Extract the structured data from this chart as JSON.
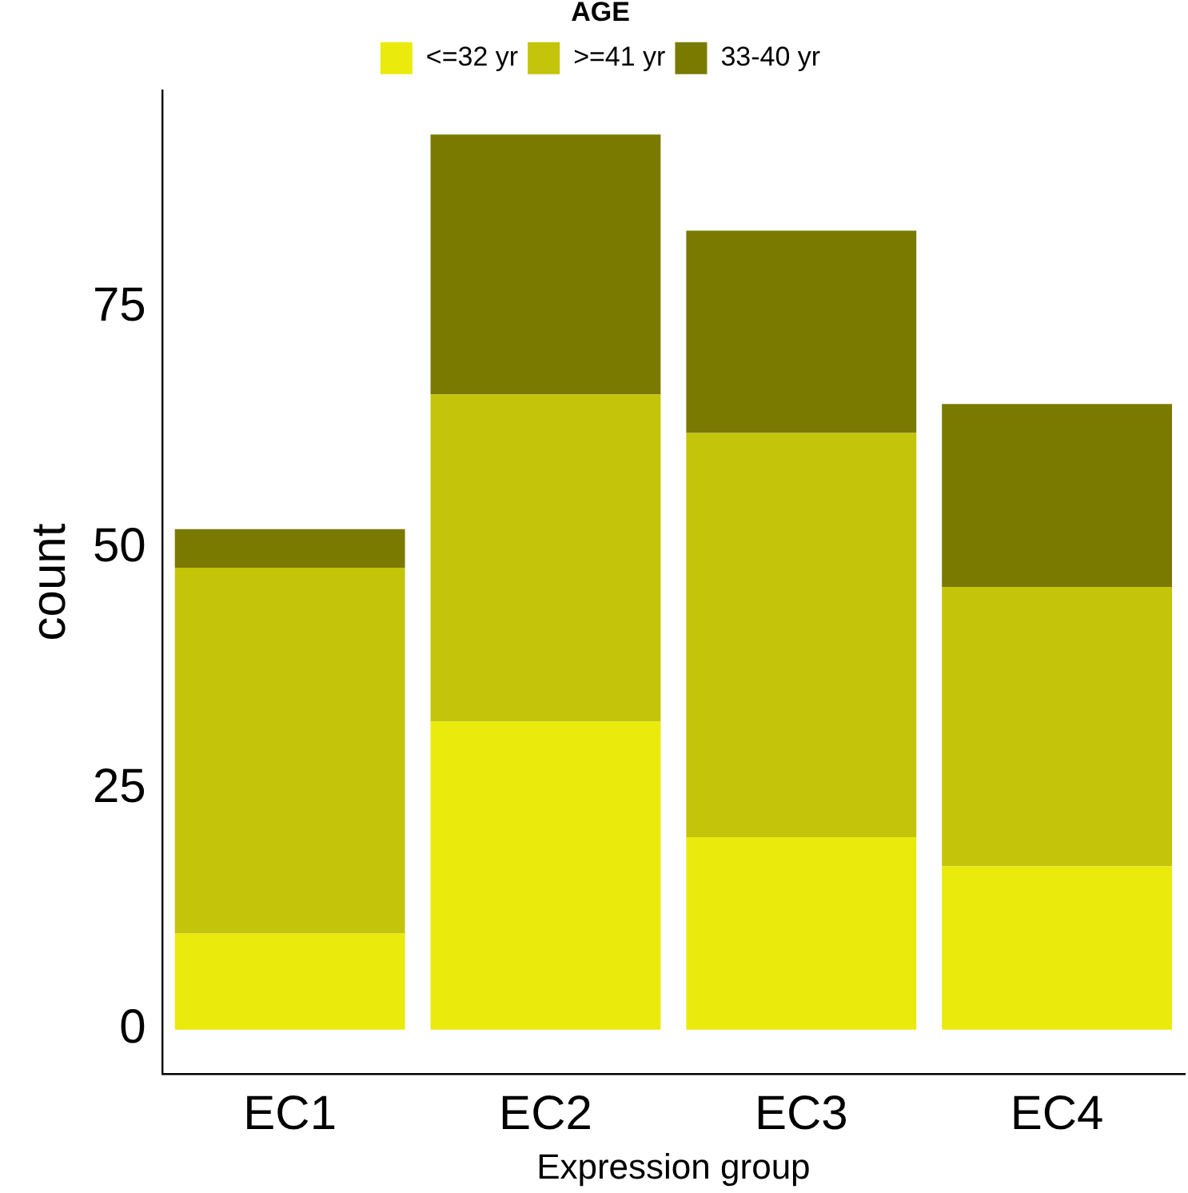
{
  "chart_data": {
    "type": "bar",
    "stacked": true,
    "xlabel": "Expression group",
    "ylabel": "count",
    "legend_title": "AGE",
    "legend": "top",
    "categories": [
      "EC1",
      "EC2",
      "EC3",
      "EC4"
    ],
    "series": [
      {
        "name": "<=32 yr",
        "color": "#eaea0c",
        "values": [
          10,
          32,
          20,
          17
        ]
      },
      {
        "name": ">=41 yr",
        "color": "#c4c40a",
        "values": [
          38,
          34,
          42,
          29
        ]
      },
      {
        "name": "33-40 yr",
        "color": "#7a7a00",
        "values": [
          4,
          27,
          21,
          19
        ]
      }
    ],
    "ylim": [
      -4.6,
      97.6
    ],
    "yticks": [
      0,
      25,
      50,
      75
    ],
    "grid": false
  }
}
